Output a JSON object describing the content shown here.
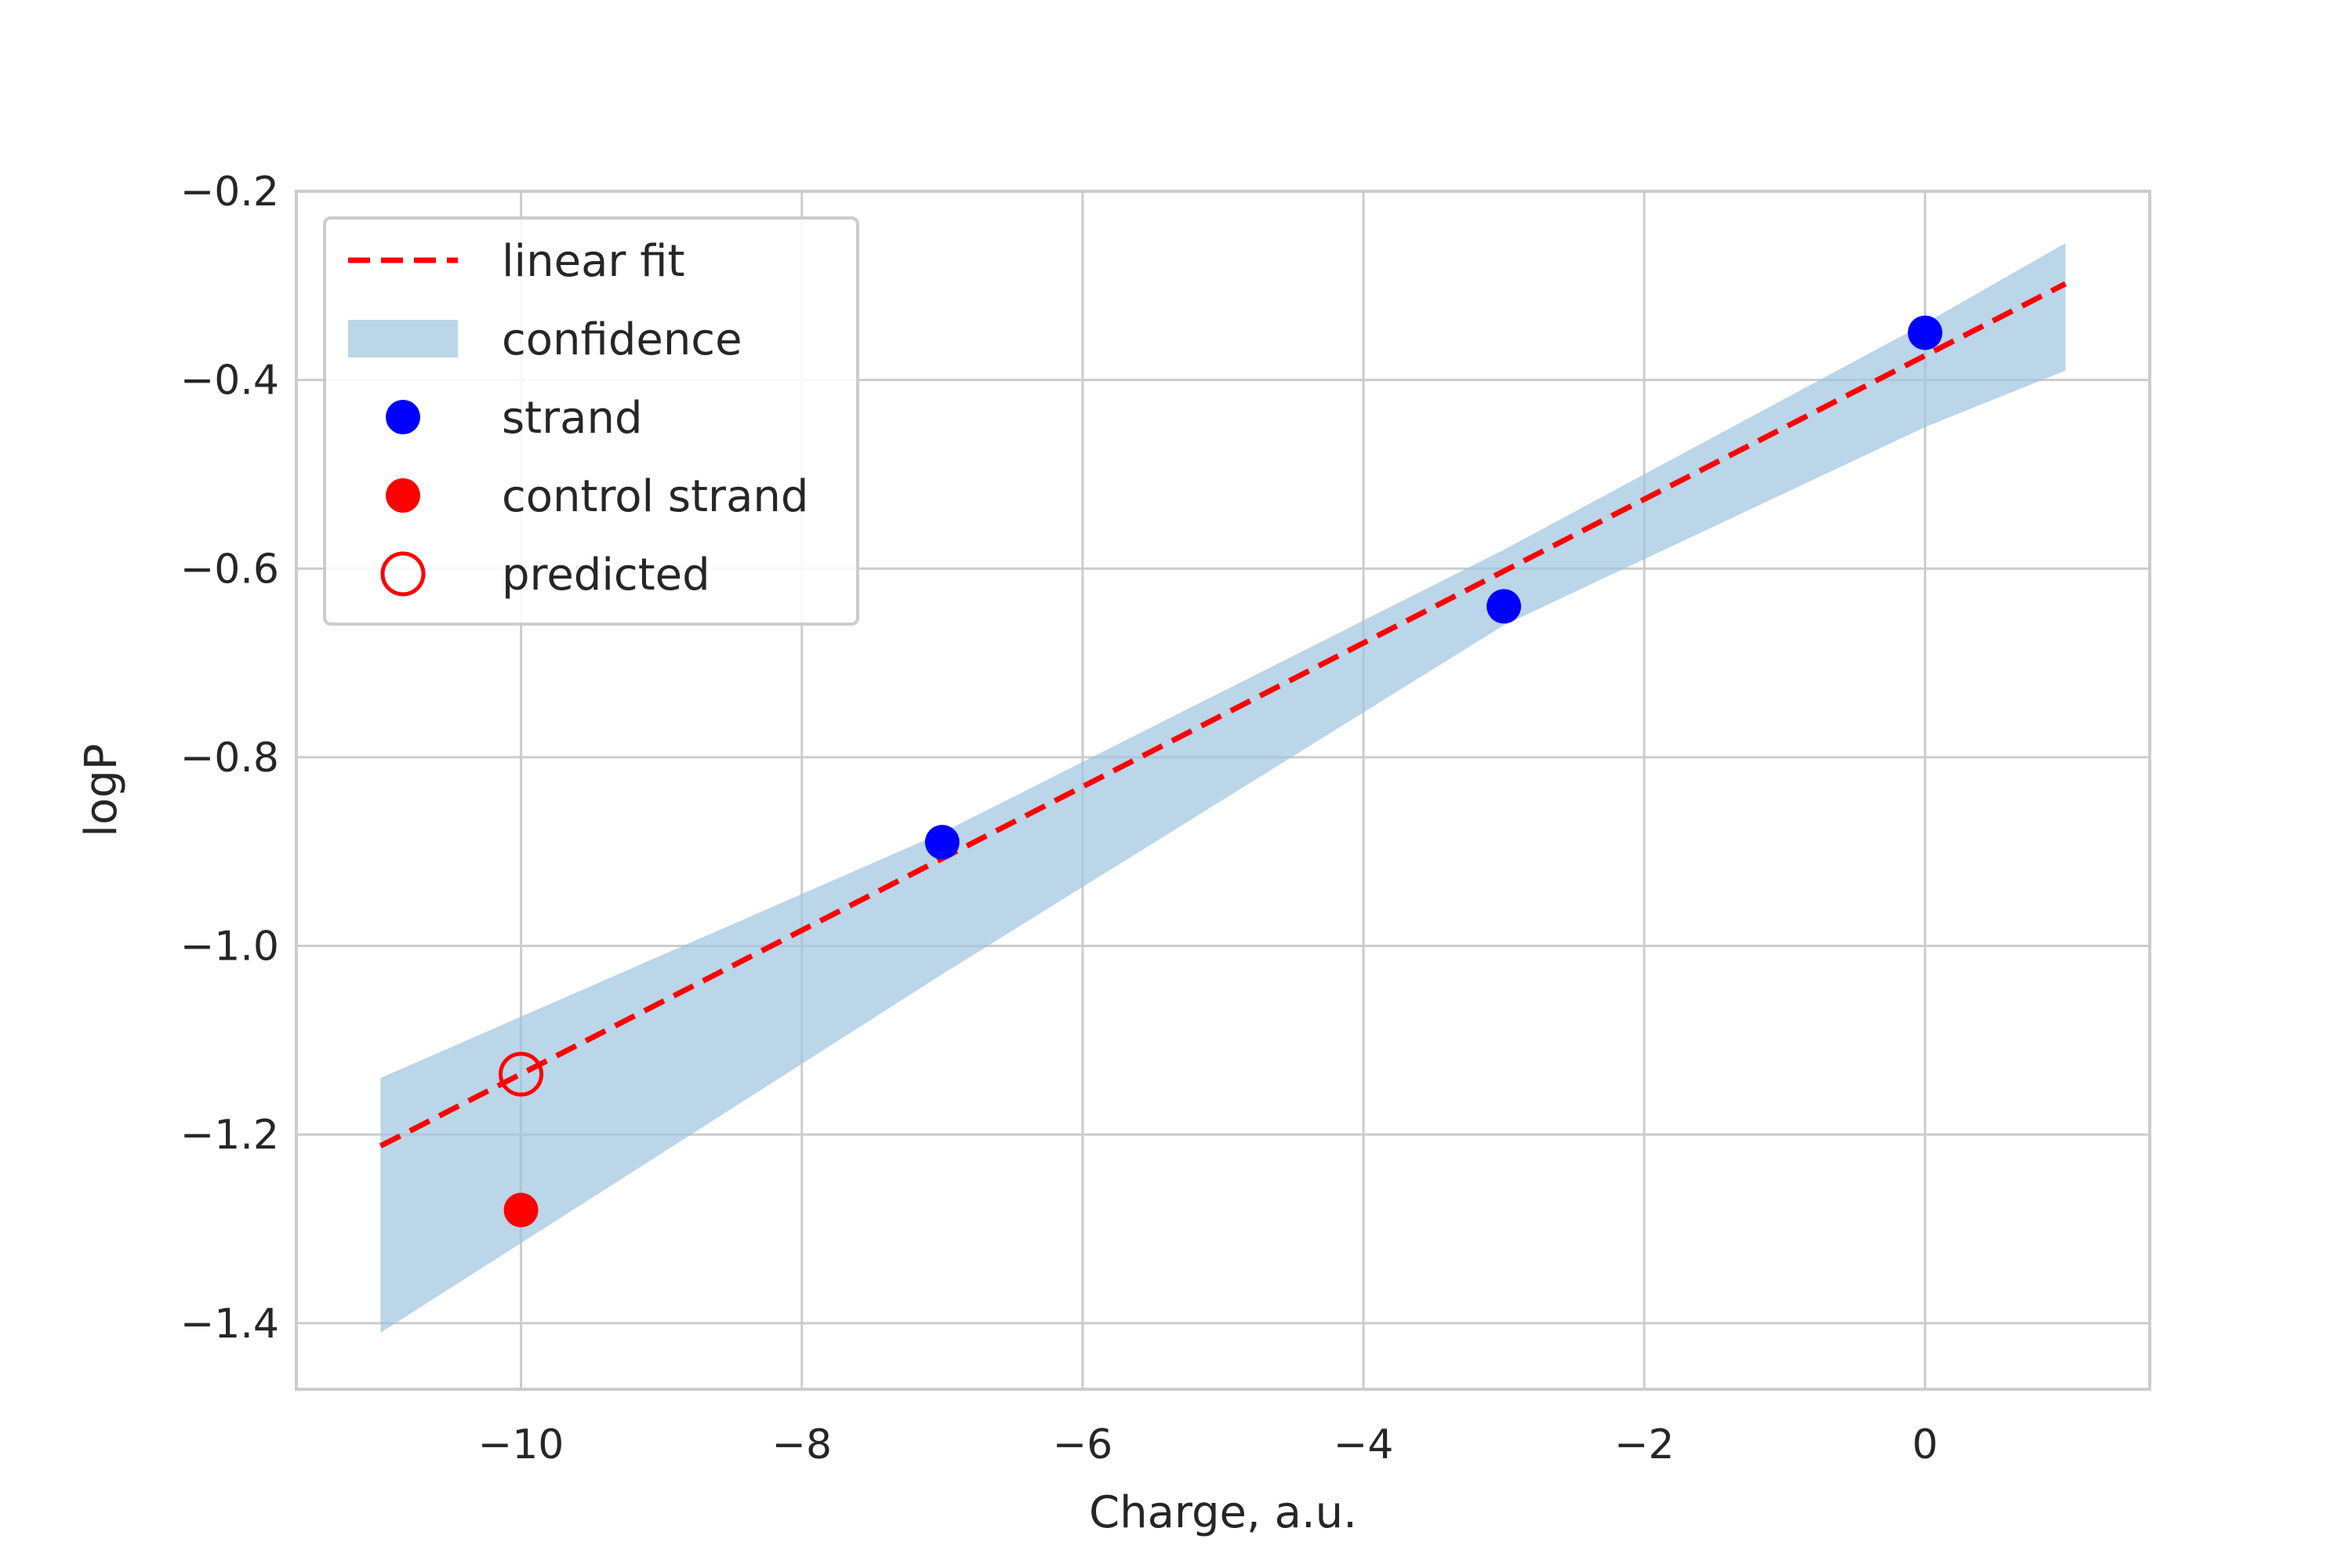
{
  "chart_data": {
    "type": "scatter",
    "title": "",
    "xlabel": "Charge, a.u.",
    "ylabel": "logP",
    "xlim": [
      -11.6,
      1.6
    ],
    "ylim": [
      -1.47,
      -0.2
    ],
    "x_ticks": [
      -10,
      -8,
      -6,
      -4,
      -2,
      0
    ],
    "x_tick_labels": [
      "−10",
      "−8",
      "−6",
      "−4",
      "−2",
      "0"
    ],
    "y_ticks": [
      -1.4,
      -1.2,
      -1.0,
      -0.8,
      -0.6,
      -0.4,
      -0.2
    ],
    "y_tick_labels": [
      "−1.4",
      "−1.2",
      "−1.0",
      "−0.8",
      "−0.6",
      "−0.4",
      "−0.2"
    ],
    "grid": true,
    "legend_position": "top-left",
    "series": [
      {
        "name": "linear fit",
        "kind": "line",
        "style": "dashed",
        "color": "#ff0000",
        "x": [
          -11,
          1
        ],
        "y": [
          -1.212,
          -0.298
        ]
      },
      {
        "name": "confidence",
        "kind": "band",
        "color": "#9ec3df",
        "x": [
          -11,
          -7,
          -3,
          0,
          1
        ],
        "y_lower": [
          -1.41,
          -1.03,
          -0.66,
          -0.45,
          -0.39
        ],
        "y_upper": [
          -1.14,
          -0.88,
          -0.58,
          -0.34,
          -0.255
        ]
      },
      {
        "name": "strand",
        "kind": "scatter",
        "color": "#0000ff",
        "x": [
          -7,
          -3,
          0
        ],
        "y": [
          -0.89,
          -0.64,
          -0.35
        ]
      },
      {
        "name": "control strand",
        "kind": "scatter",
        "color": "#ff0000",
        "x": [
          -10
        ],
        "y": [
          -1.28
        ]
      },
      {
        "name": "predicted",
        "kind": "scatter-open",
        "color": "#ff0000",
        "x": [
          -10
        ],
        "y": [
          -1.136
        ]
      }
    ]
  }
}
